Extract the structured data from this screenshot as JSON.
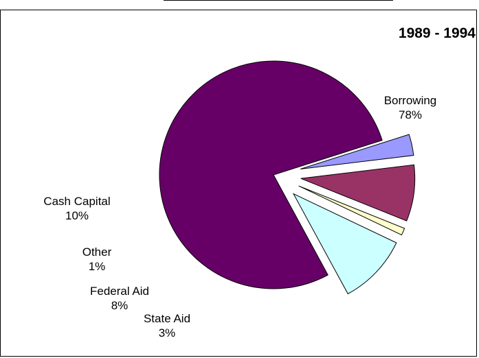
{
  "chart_data": {
    "type": "pie",
    "title": "1989 - 1994",
    "legend": "none",
    "exploded": true,
    "slices": [
      {
        "name": "Borrowing",
        "value": 78,
        "label": "78%",
        "color": "#660066"
      },
      {
        "name": "State Aid",
        "value": 3,
        "label": "3%",
        "color": "#9999ff"
      },
      {
        "name": "Federal Aid",
        "value": 8,
        "label": "8%",
        "color": "#993366"
      },
      {
        "name": "Other",
        "value": 1,
        "label": "1%",
        "color": "#ffffcc"
      },
      {
        "name": "Cash Capital",
        "value": 10,
        "label": "10%",
        "color": "#ccffff"
      }
    ]
  }
}
